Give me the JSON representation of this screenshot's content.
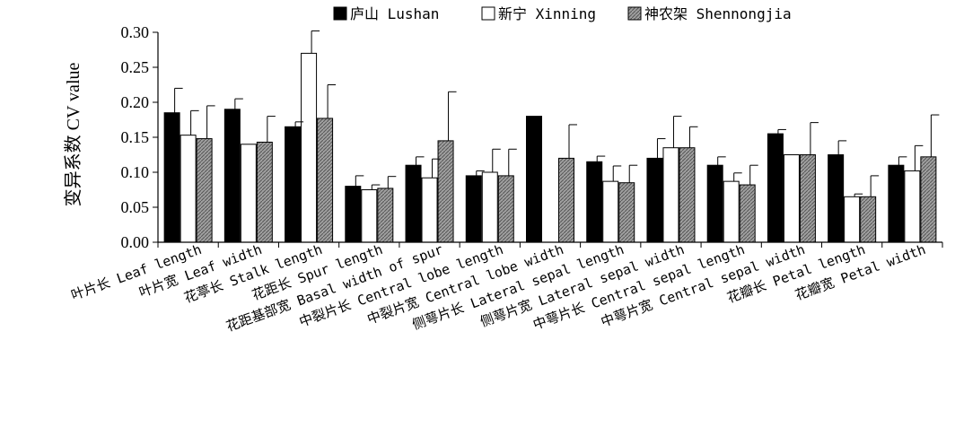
{
  "chart_data": {
    "type": "bar",
    "ylabel": "变异系数 CV value",
    "ylim": [
      0,
      0.3
    ],
    "yticks": [
      "0.00",
      "0.05",
      "0.10",
      "0.15",
      "0.20",
      "0.25",
      "0.30"
    ],
    "legend_position": "top",
    "categories": [
      "叶片长 Leaf length",
      "叶片宽 Leaf width",
      "花葶长 Stalk length",
      "花距长 Spur length",
      "花距基部宽 Basal width of spur",
      "中裂片长 Central lobe length",
      "中裂片宽 Central lobe width",
      "侧萼片长 Lateral sepal length",
      "侧萼片宽 Lateral sepal width",
      "中萼片长 Central sepal length",
      "中萼片宽 Central sepal width",
      "花瓣长 Petal length",
      "花瓣宽 Petal width"
    ],
    "series": [
      {
        "name": "庐山 Lushan",
        "color": "#000000",
        "pattern": "solid",
        "values": [
          0.185,
          0.19,
          0.165,
          0.08,
          0.11,
          0.095,
          0.18,
          0.115,
          0.12,
          0.11,
          0.155,
          0.125,
          0.11
        ],
        "errors": [
          0.035,
          0.015,
          0.007,
          0.015,
          0.012,
          0.007,
          0.0,
          0.008,
          0.028,
          0.012,
          0.006,
          0.02,
          0.012
        ]
      },
      {
        "name": "新宁 Xinning",
        "color": "#ffffff",
        "pattern": "hollow",
        "values": [
          0.153,
          0.14,
          0.27,
          0.075,
          0.092,
          0.1,
          0.0,
          0.087,
          0.135,
          0.087,
          0.125,
          0.065,
          0.102
        ],
        "errors": [
          0.035,
          0.0,
          0.035,
          0.007,
          0.027,
          0.033,
          0.0,
          0.022,
          0.045,
          0.012,
          0.0,
          0.004,
          0.036
        ]
      },
      {
        "name": "神农架 Shennongjia",
        "color": "#9a9a9a",
        "pattern": "hatched",
        "values": [
          0.148,
          0.143,
          0.177,
          0.077,
          0.145,
          0.095,
          0.12,
          0.085,
          0.135,
          0.082,
          0.125,
          0.065,
          0.122
        ],
        "errors": [
          0.047,
          0.037,
          0.048,
          0.017,
          0.07,
          0.038,
          0.048,
          0.025,
          0.03,
          0.028,
          0.046,
          0.03,
          0.06
        ]
      }
    ]
  }
}
